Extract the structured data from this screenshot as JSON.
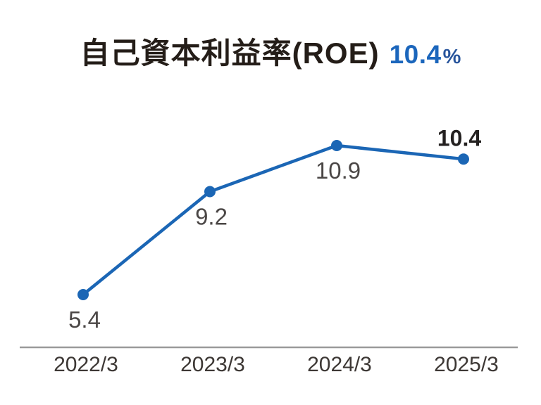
{
  "header": {
    "title": "自己資本利益率(ROE)",
    "highlight_value": "10.4",
    "highlight_unit": "%"
  },
  "colors": {
    "line": "#1b66b5",
    "marker": "#1b66b5",
    "title_text": "#241d18",
    "highlight_blue": "#1b66bc",
    "unit_blue": "#27549c",
    "value_label": "#4b4746",
    "value_label_emphasis": "#242120",
    "axis_line": "#9a9a9a",
    "tick_text": "#3d3835",
    "background": "#ffffff"
  },
  "chart_data": {
    "type": "line",
    "title": "自己資本利益率(ROE)",
    "subtitle_value": "10.4%",
    "categories": [
      "2022/3",
      "2023/3",
      "2024/3",
      "2025/3"
    ],
    "values": [
      5.4,
      9.2,
      10.9,
      10.4
    ],
    "value_labels": [
      "5.4",
      "9.2",
      "10.9",
      "10.4"
    ],
    "label_positions": [
      "below",
      "below",
      "below",
      "above"
    ],
    "emphasized_index": 3,
    "unit": "%",
    "xlabel": "",
    "ylabel": "",
    "y_axis_visible": false,
    "grid": false,
    "legend": false,
    "markers": true
  }
}
